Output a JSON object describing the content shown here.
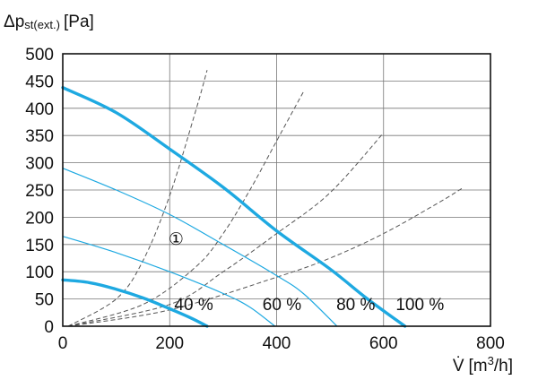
{
  "chart_data": {
    "type": "line",
    "title": "",
    "ylabel": {
      "main": "Δp",
      "sub": "st(ext.)",
      "unit": "[Pa]"
    },
    "xlabel": {
      "main": "V̇",
      "unit_pre": "[m",
      "unit_sup": "3",
      "unit_post": "/h]"
    },
    "xlim": [
      0,
      800
    ],
    "ylim": [
      0,
      500
    ],
    "x_ticks": [
      0,
      200,
      400,
      600,
      800
    ],
    "y_ticks": [
      0,
      50,
      100,
      150,
      200,
      250,
      300,
      350,
      400,
      450,
      500
    ],
    "grid": "vertical at x ticks, horizontal every 50 Pa",
    "colors": {
      "fan_curve": "#1ea9e1",
      "system_curve": "#555555",
      "grid": "#777777"
    },
    "series": [
      {
        "kind": "fan-curve",
        "label": "100 %",
        "line": "bold",
        "x": [
          0,
          100,
          200,
          300,
          400,
          500,
          570,
          640
        ],
        "y": [
          438,
          392,
          325,
          255,
          175,
          105,
          50,
          0
        ]
      },
      {
        "kind": "fan-curve",
        "label": "80 %",
        "line": "thin",
        "x": [
          0,
          100,
          200,
          300,
          400,
          450,
          513
        ],
        "y": [
          290,
          250,
          205,
          150,
          93,
          60,
          0
        ]
      },
      {
        "kind": "fan-curve",
        "label": "60 %",
        "line": "thin",
        "x": [
          0,
          100,
          200,
          300,
          350,
          397
        ],
        "y": [
          165,
          135,
          100,
          60,
          35,
          0
        ]
      },
      {
        "kind": "fan-curve",
        "label": "40 %",
        "line": "bold",
        "x": [
          0,
          50,
          100,
          150,
          200,
          240,
          270
        ],
        "y": [
          85,
          80,
          68,
          52,
          32,
          15,
          0
        ]
      },
      {
        "kind": "system-curve",
        "line": "dashed",
        "x": [
          10,
          100,
          150,
          200,
          250,
          270
        ],
        "y": [
          0,
          50,
          120,
          240,
          400,
          470
        ]
      },
      {
        "kind": "system-curve",
        "line": "dashed",
        "x": [
          10,
          150,
          250,
          300,
          350,
          400,
          450
        ],
        "y": [
          0,
          40,
          110,
          170,
          250,
          340,
          430
        ]
      },
      {
        "kind": "system-curve",
        "line": "dashed",
        "x": [
          10,
          200,
          300,
          400,
          500,
          600
        ],
        "y": [
          0,
          40,
          100,
          170,
          245,
          355
        ]
      },
      {
        "kind": "system-curve",
        "line": "dashed",
        "x": [
          10,
          200,
          400,
          500,
          600,
          700,
          750
        ],
        "y": [
          0,
          30,
          90,
          125,
          170,
          225,
          255
        ]
      }
    ],
    "annotations": [
      {
        "text": "40 %",
        "x": 245,
        "y": 30
      },
      {
        "text": "60 %",
        "x": 410,
        "y": 30
      },
      {
        "text": "80 %",
        "x": 548,
        "y": 30
      },
      {
        "text": "100 %",
        "x": 668,
        "y": 30
      },
      {
        "text": "①",
        "x": 212,
        "y": 150
      }
    ]
  }
}
